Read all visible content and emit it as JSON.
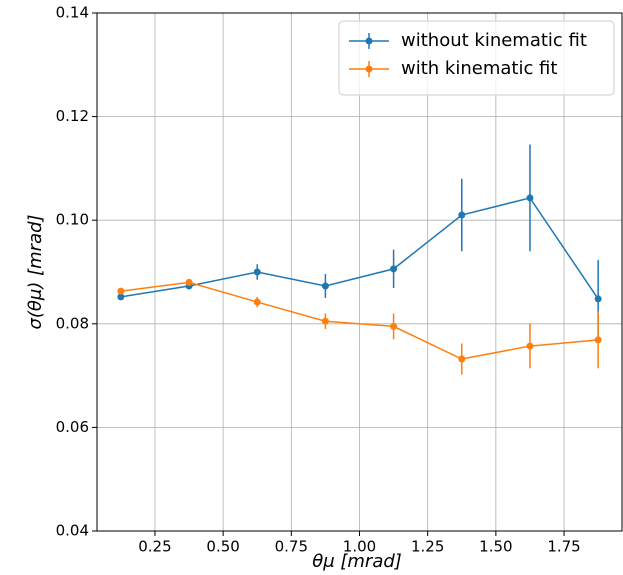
{
  "chart_data": {
    "type": "line",
    "xlabel": "θμ [mrad]",
    "ylabel": "σ(θμ) [mrad]",
    "x": [
      0.125,
      0.375,
      0.625,
      0.875,
      1.125,
      1.375,
      1.625,
      1.875
    ],
    "series": [
      {
        "name": "without kinematic fit",
        "color": "#1f77b4",
        "values": [
          0.0852,
          0.0873,
          0.09,
          0.0873,
          0.0906,
          0.101,
          0.1043,
          0.0848
        ],
        "errors": [
          0.0005,
          0.0005,
          0.0015,
          0.0023,
          0.0037,
          0.007,
          0.0103,
          0.0075
        ]
      },
      {
        "name": "with kinematic fit",
        "color": "#ff7f0e",
        "values": [
          0.0863,
          0.088,
          0.0842,
          0.0805,
          0.0795,
          0.0732,
          0.0757,
          0.0769
        ],
        "errors": [
          0.0005,
          0.0005,
          0.001,
          0.0015,
          0.0025,
          0.003,
          0.0043,
          0.0055
        ]
      }
    ],
    "xlim": [
      0.0375,
      1.9625
    ],
    "ylim": [
      0.04,
      0.14
    ],
    "xticks": [
      0.25,
      {
        "value": 0.5,
        "label": "0.50"
      },
      0.75,
      {
        "value": 1,
        "label": "1.00"
      },
      1.25,
      {
        "value": 1.5,
        "label": "1.50"
      },
      1.75
    ],
    "yticks": [
      0.04,
      0.06,
      0.08,
      {
        "value": 0.1,
        "label": "0.10"
      },
      0.12,
      0.14
    ],
    "grid": true,
    "legend": "upper right"
  }
}
